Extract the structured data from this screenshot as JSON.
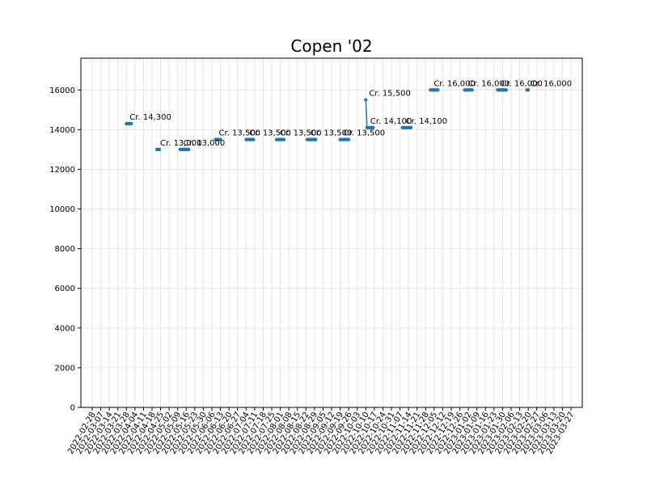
{
  "chart_data": {
    "type": "line",
    "title": "Copen '02",
    "xlabel": "",
    "ylabel": "",
    "ylim": [
      0,
      17600
    ],
    "y_ticks": [
      0,
      2000,
      4000,
      6000,
      8000,
      10000,
      12000,
      14000,
      16000
    ],
    "grid": true,
    "line_color": "#1f77b4",
    "x_ticks": [
      "2022-02-28",
      "2022-03-07",
      "2022-03-14",
      "2022-03-21",
      "2022-03-28",
      "2022-04-04",
      "2022-04-11",
      "2022-04-18",
      "2022-04-25",
      "2022-05-02",
      "2022-05-09",
      "2022-05-16",
      "2022-05-23",
      "2022-05-30",
      "2022-06-06",
      "2022-06-13",
      "2022-06-20",
      "2022-06-27",
      "2022-07-04",
      "2022-07-11",
      "2022-07-18",
      "2022-07-25",
      "2022-08-01",
      "2022-08-08",
      "2022-08-15",
      "2022-08-22",
      "2022-08-29",
      "2022-09-05",
      "2022-09-12",
      "2022-09-19",
      "2022-09-26",
      "2022-10-03",
      "2022-10-10",
      "2022-10-17",
      "2022-10-24",
      "2022-10-31",
      "2022-11-07",
      "2022-11-14",
      "2022-11-21",
      "2022-11-28",
      "2022-12-05",
      "2022-12-12",
      "2022-12-19",
      "2022-12-26",
      "2023-01-02",
      "2023-01-09",
      "2023-01-16",
      "2023-01-23",
      "2023-01-30",
      "2023-02-06",
      "2023-02-13",
      "2023-02-20",
      "2023-02-27",
      "2023-03-06",
      "2023-03-13",
      "2023-03-20",
      "2023-03-27"
    ],
    "x_tick_labels": [
      "2022-02-28",
      "2022-03-07",
      "2022-03-14",
      "2022-03-21",
      "2022-03-28",
      "2022-04-04",
      "2022-04-11",
      "2022-04-18",
      "2022-04-25",
      "2022-05-02",
      "2022-05-09",
      "2022-05-16",
      "2022-05-23",
      "2022-05-30",
      "2022-06-06",
      "2022-06-13",
      "2022-06-20",
      "2022-06-27",
      "2022-07-04",
      "2022-07-11",
      "2022-07-18",
      "2022-07-25",
      "2022-08-01",
      "2022-08-08",
      "2022-08-15",
      "2022-08-22",
      "2022-08-29",
      "2022-09-05",
      "2022-09-12",
      "2022-09-19",
      "2022-09-26",
      "2022-10-03",
      "2022-10-10",
      "2022-10-17",
      "2022-10-24",
      "2022-10-31",
      "2022-11-07",
      "2022-11-14",
      "2022-11-21",
      "2022-11-28",
      "2022-12-05",
      "2022-12-12",
      "2022-12-19",
      "2022-12-26",
      "2023-01-02",
      "2023-01-09",
      "2023-01-16",
      "2023-01-23",
      "2023-01-30",
      "2023-02-06",
      "2023-02-13",
      "2023-02-20",
      "2023-02-27",
      "2023-03-06",
      "2023-03-13",
      "2023-03-20",
      "2023-03-27"
    ],
    "series": [
      {
        "segments": [
          [
            [
              "2022-03-28",
              14300
            ],
            [
              "2022-03-29",
              14300
            ],
            [
              "2022-03-30",
              14300
            ],
            [
              "2022-03-31",
              14300
            ],
            [
              "2022-04-01",
              14300
            ]
          ],
          [
            [
              "2022-04-22",
              13000
            ],
            [
              "2022-04-23",
              13000
            ],
            [
              "2022-04-24",
              13000
            ]
          ],
          [
            [
              "2022-05-11",
              13000
            ],
            [
              "2022-05-12",
              13000
            ],
            [
              "2022-05-13",
              13000
            ],
            [
              "2022-05-14",
              13000
            ],
            [
              "2022-05-15",
              13000
            ],
            [
              "2022-05-16",
              13000
            ],
            [
              "2022-05-17",
              13000
            ],
            [
              "2022-05-18",
              13000
            ]
          ],
          [
            [
              "2022-06-09",
              13500
            ],
            [
              "2022-06-10",
              13500
            ],
            [
              "2022-06-11",
              13500
            ],
            [
              "2022-06-12",
              13500
            ],
            [
              "2022-06-13",
              13500
            ]
          ],
          [
            [
              "2022-07-04",
              13500
            ],
            [
              "2022-07-05",
              13500
            ],
            [
              "2022-07-06",
              13500
            ],
            [
              "2022-07-07",
              13500
            ],
            [
              "2022-07-08",
              13500
            ],
            [
              "2022-07-09",
              13500
            ],
            [
              "2022-07-10",
              13500
            ]
          ],
          [
            [
              "2022-07-29",
              13500
            ],
            [
              "2022-07-30",
              13500
            ],
            [
              "2022-07-31",
              13500
            ],
            [
              "2022-08-01",
              13500
            ],
            [
              "2022-08-02",
              13500
            ],
            [
              "2022-08-03",
              13500
            ],
            [
              "2022-08-04",
              13500
            ]
          ],
          [
            [
              "2022-08-23",
              13500
            ],
            [
              "2022-08-24",
              13500
            ],
            [
              "2022-08-25",
              13500
            ],
            [
              "2022-08-26",
              13500
            ],
            [
              "2022-08-27",
              13500
            ],
            [
              "2022-08-28",
              13500
            ],
            [
              "2022-08-29",
              13500
            ],
            [
              "2022-08-30",
              13500
            ]
          ],
          [
            [
              "2022-09-19",
              13500
            ],
            [
              "2022-09-20",
              13500
            ],
            [
              "2022-09-21",
              13500
            ],
            [
              "2022-09-22",
              13500
            ],
            [
              "2022-09-23",
              13500
            ],
            [
              "2022-09-24",
              13500
            ],
            [
              "2022-09-25",
              13500
            ],
            [
              "2022-09-26",
              13500
            ]
          ],
          [
            [
              "2022-10-10",
              15500
            ],
            [
              "2022-10-11",
              14100
            ],
            [
              "2022-10-12",
              14100
            ],
            [
              "2022-10-13",
              14100
            ],
            [
              "2022-10-14",
              14100
            ],
            [
              "2022-10-15",
              14100
            ],
            [
              "2022-10-16",
              14100
            ]
          ],
          [
            [
              "2022-11-09",
              14100
            ],
            [
              "2022-11-10",
              14100
            ],
            [
              "2022-11-11",
              14100
            ],
            [
              "2022-11-12",
              14100
            ],
            [
              "2022-11-13",
              14100
            ],
            [
              "2022-11-14",
              14100
            ],
            [
              "2022-11-15",
              14100
            ],
            [
              "2022-11-16",
              14100
            ]
          ],
          [
            [
              "2022-12-02",
              16000
            ],
            [
              "2022-12-03",
              16000
            ],
            [
              "2022-12-04",
              16000
            ],
            [
              "2022-12-05",
              16000
            ],
            [
              "2022-12-06",
              16000
            ],
            [
              "2022-12-07",
              16000
            ],
            [
              "2022-12-08",
              16000
            ]
          ],
          [
            [
              "2022-12-30",
              16000
            ],
            [
              "2022-12-31",
              16000
            ],
            [
              "2023-01-01",
              16000
            ],
            [
              "2023-01-02",
              16000
            ],
            [
              "2023-01-03",
              16000
            ],
            [
              "2023-01-04",
              16000
            ],
            [
              "2023-01-05",
              16000
            ]
          ],
          [
            [
              "2023-01-26",
              16000
            ],
            [
              "2023-01-27",
              16000
            ],
            [
              "2023-01-28",
              16000
            ],
            [
              "2023-01-29",
              16000
            ],
            [
              "2023-01-30",
              16000
            ],
            [
              "2023-01-31",
              16000
            ],
            [
              "2023-02-01",
              16000
            ],
            [
              "2023-02-02",
              16000
            ]
          ],
          [
            [
              "2023-02-19",
              16000
            ],
            [
              "2023-02-20",
              16000
            ]
          ]
        ]
      }
    ],
    "annotations": [
      {
        "x": "2022-03-28",
        "y": 14300,
        "text": "Cr. 14,300"
      },
      {
        "x": "2022-04-22",
        "y": 13000,
        "text": "Cr. 13,000"
      },
      {
        "x": "2022-05-11",
        "y": 13000,
        "text": "Cr. 13,000"
      },
      {
        "x": "2022-06-09",
        "y": 13500,
        "text": "Cr. 13,500"
      },
      {
        "x": "2022-07-04",
        "y": 13500,
        "text": "Cr. 13,500"
      },
      {
        "x": "2022-07-29",
        "y": 13500,
        "text": "Cr. 13,500"
      },
      {
        "x": "2022-08-23",
        "y": 13500,
        "text": "Cr. 13,500"
      },
      {
        "x": "2022-09-19",
        "y": 13500,
        "text": "Cr. 13,500"
      },
      {
        "x": "2022-10-10",
        "y": 15500,
        "text": "Cr. 15,500"
      },
      {
        "x": "2022-10-11",
        "y": 14100,
        "text": "Cr. 14,100"
      },
      {
        "x": "2022-11-09",
        "y": 14100,
        "text": "Cr. 14,100"
      },
      {
        "x": "2022-12-02",
        "y": 16000,
        "text": "Cr. 16,000"
      },
      {
        "x": "2022-12-30",
        "y": 16000,
        "text": "Cr. 16,000"
      },
      {
        "x": "2023-01-26",
        "y": 16000,
        "text": "Cr. 16,000"
      },
      {
        "x": "2023-02-19",
        "y": 16000,
        "text": "Cr. 16,000"
      }
    ]
  }
}
